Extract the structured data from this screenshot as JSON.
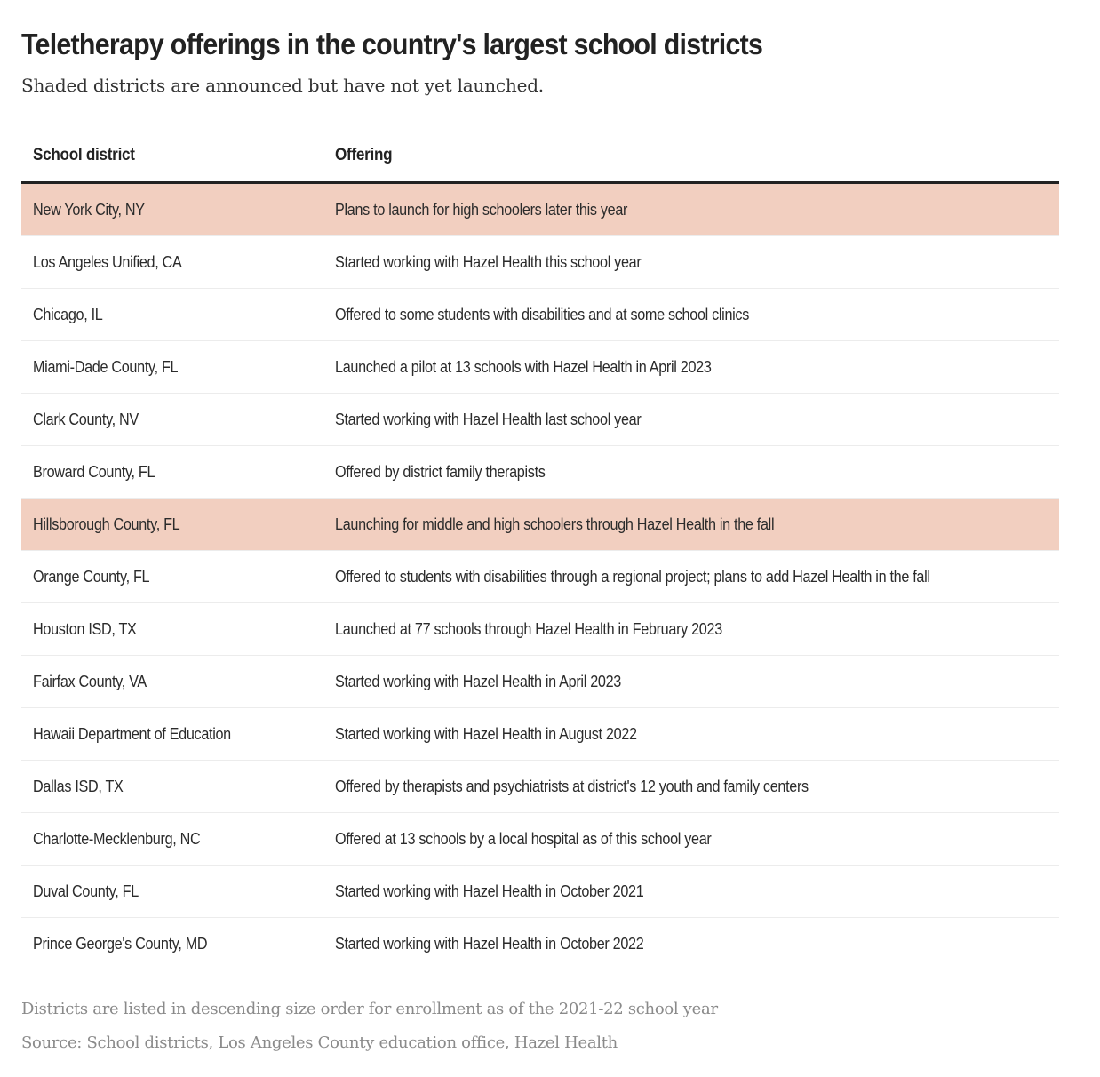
{
  "title": "Teletherapy offerings in the country's largest school districts",
  "subtitle": "Shaded districts are announced but have not yet launched.",
  "colors": {
    "announced_shade": "#f2cfc0",
    "header_rule": "#222222",
    "row_divider": "#ececec",
    "note_text": "#8a8a8a"
  },
  "chart_data": {
    "type": "table",
    "columns": [
      "School district",
      "Offering"
    ],
    "rows": [
      {
        "district": "New York City, NY",
        "offering": "Plans to launch for high schoolers later this year",
        "announced": true
      },
      {
        "district": "Los Angeles Unified, CA",
        "offering": "Started working with Hazel Health this school year",
        "announced": false
      },
      {
        "district": "Chicago, IL",
        "offering": "Offered to some students with disabilities and at some school clinics",
        "announced": false
      },
      {
        "district": "Miami-Dade County, FL",
        "offering": "Launched a pilot at 13 schools with Hazel Health in April 2023",
        "announced": false
      },
      {
        "district": "Clark County, NV",
        "offering": "Started working with Hazel Health last school year",
        "announced": false
      },
      {
        "district": "Broward County, FL",
        "offering": "Offered by district family therapists",
        "announced": false
      },
      {
        "district": "Hillsborough County, FL",
        "offering": "Launching for middle and high schoolers through Hazel Health in the fall",
        "announced": true
      },
      {
        "district": "Orange County, FL",
        "offering": "Offered to students with disabilities through a regional project; plans to add Hazel Health in the fall",
        "announced": false
      },
      {
        "district": "Houston ISD, TX",
        "offering": "Launched at 77 schools through Hazel Health in February 2023",
        "announced": false
      },
      {
        "district": "Fairfax County, VA",
        "offering": "Started working with Hazel Health in April 2023",
        "announced": false
      },
      {
        "district": "Hawaii Department of Education",
        "offering": "Started working with Hazel Health in August 2022",
        "announced": false
      },
      {
        "district": "Dallas ISD, TX",
        "offering": "Offered by therapists and psychiatrists at district's 12 youth and family centers",
        "announced": false
      },
      {
        "district": "Charlotte-Mecklenburg, NC",
        "offering": "Offered at 13 schools by a local hospital as of this school year",
        "announced": false
      },
      {
        "district": "Duval County, FL",
        "offering": "Started working with Hazel Health in October 2021",
        "announced": false
      },
      {
        "district": "Prince George's County, MD",
        "offering": "Started working with Hazel Health in October 2022",
        "announced": false
      }
    ]
  },
  "notes": {
    "ordering": "Districts are listed in descending size order for enrollment as of the 2021-22 school year",
    "source": "Source: School districts, Los Angeles County education office, Hazel Health"
  }
}
